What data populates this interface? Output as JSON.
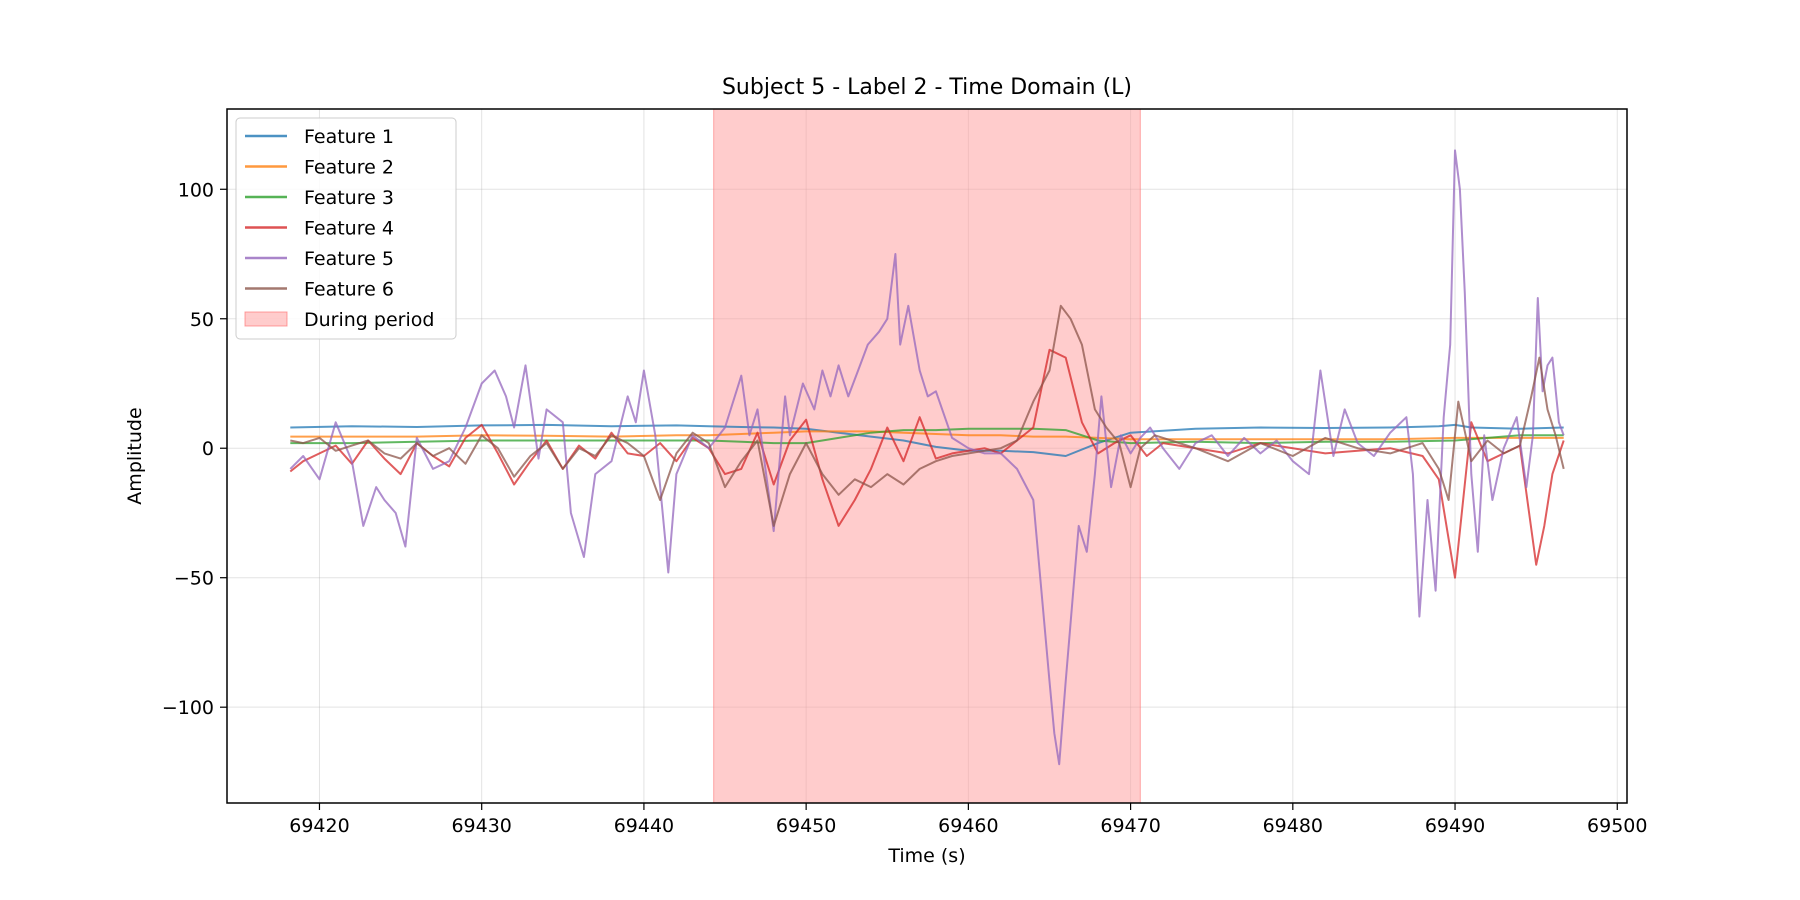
{
  "chart_data": {
    "type": "line",
    "title": "Subject 5 - Label 2 - Time Domain (L)",
    "xlabel": "Time (s)",
    "ylabel": "Amplitude",
    "xlim": [
      69414.3,
      69500.6
    ],
    "ylim": [
      -137,
      131
    ],
    "xticks": [
      69420,
      69430,
      69440,
      69450,
      69460,
      69470,
      69480,
      69490,
      69500
    ],
    "yticks": [
      -100,
      -50,
      0,
      50,
      100
    ],
    "ytick_labels": [
      "−100",
      "−50",
      "0",
      "50",
      "100"
    ],
    "grid": true,
    "legend_position": "upper left",
    "highlight": {
      "label": "During period",
      "x_start": 69444.3,
      "x_end": 69470.6,
      "color": "#ff9999"
    },
    "series": [
      {
        "name": "Feature 1",
        "color": "#1f77b4",
        "x": [
          69418.2,
          69422,
          69426,
          69430,
          69434,
          69438,
          69442,
          69444,
          69446,
          69448,
          69450,
          69452,
          69454,
          69456,
          69458,
          69460,
          69462,
          69464,
          69466,
          69468,
          69470,
          69474,
          69478,
          69482,
          69486,
          69489,
          69490,
          69491,
          69494,
          69496.7
        ],
        "y": [
          8,
          8.5,
          8.2,
          8.8,
          9,
          8.5,
          8.8,
          8.5,
          8.2,
          8,
          7.5,
          6,
          4.5,
          3,
          0.5,
          -1,
          -1,
          -1.5,
          -3,
          2,
          6,
          7.5,
          8,
          7.8,
          8,
          8.5,
          9,
          8,
          7.5,
          8
        ]
      },
      {
        "name": "Feature 2",
        "color": "#ff7f0e",
        "x": [
          69418.2,
          69422,
          69426,
          69430,
          69434,
          69438,
          69442,
          69444,
          69446,
          69448,
          69450,
          69452,
          69454,
          69456,
          69458,
          69460,
          69462,
          69464,
          69466,
          69468,
          69470,
          69474,
          69478,
          69482,
          69486,
          69490,
          69494,
          69496.7
        ],
        "y": [
          4.5,
          4.5,
          4.5,
          5,
          4.8,
          4.5,
          5,
          5,
          5.5,
          6,
          6.5,
          6.5,
          6.5,
          6,
          5.5,
          5,
          5,
          4.5,
          4.5,
          4,
          3.5,
          3.5,
          3.5,
          3.5,
          3.5,
          4,
          4,
          4
        ]
      },
      {
        "name": "Feature 3",
        "color": "#2ca02c",
        "x": [
          69418.2,
          69422,
          69426,
          69430,
          69434,
          69438,
          69442,
          69444,
          69446,
          69448,
          69450,
          69452,
          69454,
          69456,
          69458,
          69460,
          69462,
          69464,
          69466,
          69468,
          69470,
          69474,
          69478,
          69482,
          69486,
          69490,
          69494,
          69496.7
        ],
        "y": [
          2,
          2,
          2.5,
          3,
          3,
          3,
          3,
          3,
          2.5,
          2,
          2,
          4,
          6,
          7,
          7,
          7.5,
          7.5,
          7.5,
          7,
          3,
          2,
          2.5,
          2,
          2.5,
          2.5,
          3,
          5,
          5
        ]
      },
      {
        "name": "Feature 4",
        "color": "#d62728",
        "x": [
          69418.2,
          69419,
          69420,
          69421,
          69422,
          69423,
          69424,
          69425,
          69426,
          69427,
          69428,
          69429,
          69430,
          69431,
          69432,
          69433,
          69434,
          69435,
          69436,
          69437,
          69438,
          69439,
          69440,
          69441,
          69442,
          69443,
          69444,
          69445,
          69446,
          69447,
          69448,
          69449,
          69450,
          69451,
          69452,
          69453,
          69454,
          69455,
          69456,
          69457,
          69458,
          69459,
          69460,
          69461,
          69462,
          69463,
          69464,
          69465,
          69466,
          69467,
          69468,
          69469,
          69470,
          69471,
          69472,
          69474,
          69476,
          69478,
          69480,
          69482,
          69484,
          69486,
          69488,
          69489,
          69490,
          69491,
          69492,
          69493,
          69494,
          69495,
          69495.5,
          69496,
          69496.7
        ],
        "y": [
          -9,
          -5,
          -2,
          1,
          -6,
          3,
          -4,
          -10,
          2,
          -3,
          -7,
          4,
          9,
          -2,
          -14,
          -5,
          3,
          -8,
          1,
          -4,
          6,
          -2,
          -3,
          2,
          -5,
          4,
          0,
          -10,
          -8,
          6,
          -14,
          3,
          11,
          -12,
          -30,
          -20,
          -8,
          8,
          -5,
          12,
          -4,
          -2,
          -1,
          0,
          -2,
          3,
          8,
          38,
          35,
          10,
          -2,
          2,
          5,
          -3,
          2,
          0,
          -2,
          2,
          0,
          -2,
          -1,
          0,
          -3,
          -12,
          -50,
          10,
          -5,
          -2,
          1,
          -45,
          -30,
          -10,
          3
        ]
      },
      {
        "name": "Feature 5",
        "color": "#9467bd",
        "x": [
          69418.2,
          69419,
          69420,
          69421,
          69422,
          69422.7,
          69423.5,
          69424,
          69424.7,
          69425.3,
          69426,
          69427,
          69428,
          69429,
          69430,
          69430.8,
          69431.5,
          69432,
          69432.7,
          69433.5,
          69434,
          69435,
          69435.5,
          69436.3,
          69437,
          69438,
          69439,
          69439.5,
          69440,
          69440.7,
          69441.5,
          69442,
          69443,
          69444,
          69445,
          69446,
          69446.5,
          69447,
          69448,
          69448.7,
          69449,
          69449.8,
          69450.5,
          69451,
          69451.5,
          69452,
          69452.6,
          69453.2,
          69453.8,
          69454.5,
          69455,
          69455.5,
          69455.8,
          69456.3,
          69457,
          69457.5,
          69458,
          69459,
          69460,
          69461,
          69462,
          69463,
          69464,
          69464.5,
          69465,
          69465.3,
          69465.6,
          69466,
          69466.4,
          69466.8,
          69467.3,
          69467.8,
          69468.2,
          69468.8,
          69469.4,
          69470,
          69470.6,
          69471.2,
          69472,
          69473,
          69474,
          69475,
          69476,
          69477,
          69478,
          69479,
          69480,
          69481,
          69481.7,
          69482.5,
          69483.2,
          69484,
          69485,
          69486,
          69487,
          69487.4,
          69487.8,
          69488.3,
          69488.8,
          69489.3,
          69489.7,
          69490,
          69490.3,
          69490.6,
          69491,
          69491.4,
          69491.8,
          69492.3,
          69493,
          69493.8,
          69494.4,
          69494.8,
          69495.1,
          69495.4,
          69495.7,
          69496,
          69496.4,
          69496.7
        ],
        "y": [
          -8,
          -3,
          -12,
          10,
          -5,
          -30,
          -15,
          -20,
          -25,
          -38,
          4,
          -8,
          -5,
          8,
          25,
          30,
          20,
          8,
          32,
          -4,
          15,
          10,
          -25,
          -42,
          -10,
          -5,
          20,
          10,
          30,
          5,
          -48,
          -10,
          5,
          0,
          8,
          28,
          5,
          15,
          -32,
          20,
          5,
          25,
          15,
          30,
          20,
          32,
          20,
          30,
          40,
          45,
          50,
          75,
          40,
          55,
          30,
          20,
          22,
          4,
          0,
          -2,
          -2,
          -8,
          -20,
          -55,
          -90,
          -110,
          -122,
          -90,
          -60,
          -30,
          -40,
          -10,
          20,
          -15,
          5,
          -2,
          4,
          8,
          0,
          -8,
          2,
          5,
          -3,
          4,
          -2,
          3,
          -5,
          -10,
          30,
          -3,
          15,
          2,
          -3,
          6,
          12,
          -10,
          -65,
          -20,
          -55,
          12,
          40,
          115,
          100,
          60,
          -10,
          -40,
          5,
          -20,
          0,
          12,
          -15,
          5,
          58,
          22,
          32,
          35,
          10,
          5
        ]
      },
      {
        "name": "Feature 6",
        "color": "#8c564b",
        "x": [
          69418.2,
          69419,
          69420,
          69421,
          69422,
          69423,
          69424,
          69425,
          69426,
          69427,
          69428,
          69429,
          69430,
          69431,
          69432,
          69433,
          69434,
          69435,
          69436,
          69437,
          69438,
          69439,
          69440,
          69441,
          69442,
          69443,
          69444,
          69445,
          69446,
          69447,
          69448,
          69449,
          69450,
          69451,
          69452,
          69453,
          69454,
          69455,
          69456,
          69457,
          69458,
          69459,
          69460,
          69461,
          69462,
          69463,
          69464,
          69465,
          69465.7,
          69466.3,
          69467,
          69467.8,
          69468.5,
          69469.3,
          69470,
          69470.6,
          69471.5,
          69472.5,
          69474,
          69476,
          69478,
          69480,
          69482,
          69484,
          69486,
          69488,
          69489,
          69489.6,
          69490.2,
          69491,
          69492,
          69493,
          69494,
          69494.7,
          69495.2,
          69495.7,
          69496.2,
          69496.7
        ],
        "y": [
          3,
          2,
          4,
          -1,
          1,
          3,
          -2,
          -4,
          2,
          -3,
          0,
          -6,
          5,
          0,
          -11,
          -3,
          2,
          -8,
          0,
          -3,
          5,
          2,
          -3,
          -20,
          -2,
          6,
          2,
          -15,
          -5,
          3,
          -30,
          -10,
          2,
          -10,
          -18,
          -12,
          -15,
          -10,
          -14,
          -8,
          -5,
          -3,
          -2,
          -1,
          0,
          3,
          18,
          30,
          55,
          50,
          40,
          15,
          8,
          2,
          -15,
          0,
          5,
          3,
          0,
          -5,
          2,
          -3,
          4,
          0,
          -2,
          2,
          -8,
          -20,
          18,
          -5,
          3,
          -2,
          1,
          20,
          35,
          15,
          5,
          -8
        ]
      }
    ]
  }
}
